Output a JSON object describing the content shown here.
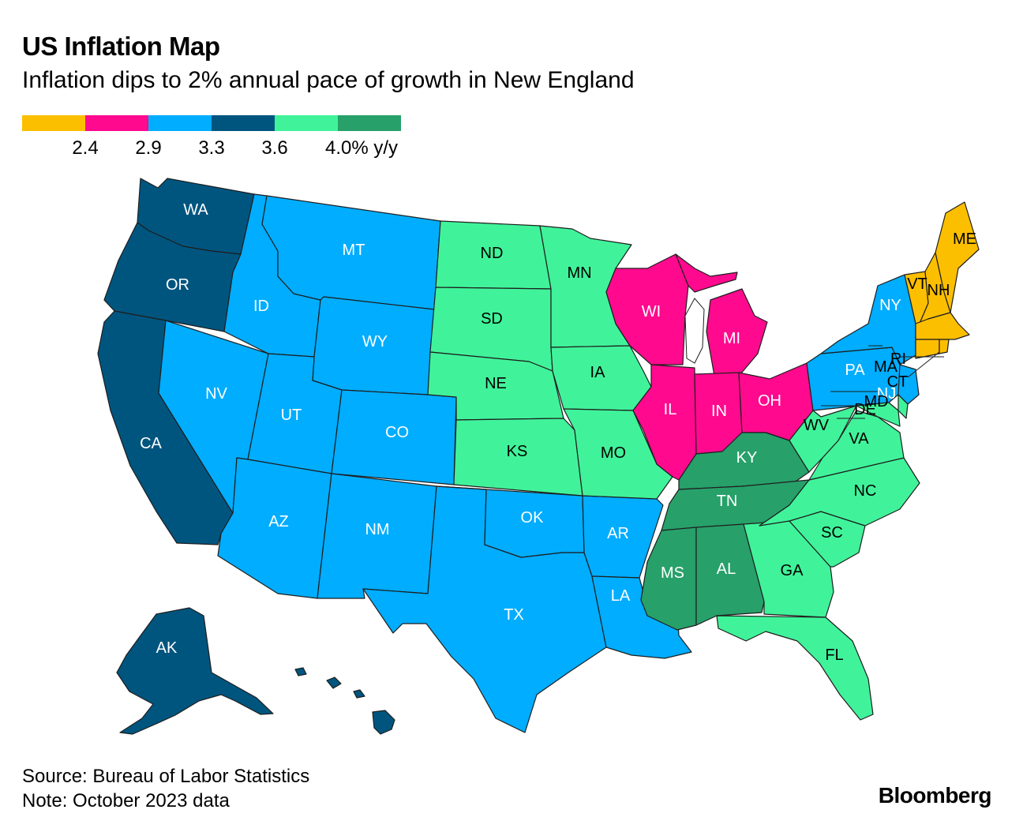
{
  "title": "US Inflation Map",
  "subtitle": "Inflation dips to 2% annual pace of growth in New England",
  "legend": {
    "bins": [
      {
        "color": "#fcbf00"
      },
      {
        "color": "#ff0a8e"
      },
      {
        "color": "#00adff"
      },
      {
        "color": "#00557f"
      },
      {
        "color": "#40f39a"
      },
      {
        "color": "#27a06a"
      }
    ],
    "ticks": [
      "2.4",
      "2.9",
      "3.3",
      "3.6",
      "4.0% y/y"
    ]
  },
  "chart_data": {
    "type": "choropleth",
    "title": "US Inflation Map",
    "subtitle": "Inflation dips to 2% annual pace of growth in New England",
    "unit": "% y/y",
    "bin_edges": [
      2.4,
      2.9,
      3.3,
      3.6,
      4.0
    ],
    "bin_colors": [
      "#fcbf00",
      "#ff0a8e",
      "#00adff",
      "#00557f",
      "#40f39a",
      "#27a06a"
    ],
    "states": [
      {
        "code": "WA",
        "bin": 3
      },
      {
        "code": "OR",
        "bin": 3
      },
      {
        "code": "CA",
        "bin": 3
      },
      {
        "code": "AK",
        "bin": 3
      },
      {
        "code": "HI",
        "bin": 3
      },
      {
        "code": "ID",
        "bin": 2
      },
      {
        "code": "MT",
        "bin": 2
      },
      {
        "code": "WY",
        "bin": 2
      },
      {
        "code": "NV",
        "bin": 2
      },
      {
        "code": "UT",
        "bin": 2
      },
      {
        "code": "CO",
        "bin": 2
      },
      {
        "code": "AZ",
        "bin": 2
      },
      {
        "code": "NM",
        "bin": 2
      },
      {
        "code": "TX",
        "bin": 2
      },
      {
        "code": "OK",
        "bin": 2
      },
      {
        "code": "AR",
        "bin": 2
      },
      {
        "code": "LA",
        "bin": 2
      },
      {
        "code": "NY",
        "bin": 2
      },
      {
        "code": "PA",
        "bin": 2
      },
      {
        "code": "NJ",
        "bin": 2
      },
      {
        "code": "ND",
        "bin": 4
      },
      {
        "code": "SD",
        "bin": 4
      },
      {
        "code": "NE",
        "bin": 4
      },
      {
        "code": "KS",
        "bin": 4
      },
      {
        "code": "MN",
        "bin": 4
      },
      {
        "code": "IA",
        "bin": 4
      },
      {
        "code": "MO",
        "bin": 4
      },
      {
        "code": "WV",
        "bin": 4
      },
      {
        "code": "VA",
        "bin": 4
      },
      {
        "code": "NC",
        "bin": 4
      },
      {
        "code": "SC",
        "bin": 4
      },
      {
        "code": "GA",
        "bin": 4
      },
      {
        "code": "FL",
        "bin": 4
      },
      {
        "code": "MD",
        "bin": 4
      },
      {
        "code": "DE",
        "bin": 4
      },
      {
        "code": "WI",
        "bin": 1
      },
      {
        "code": "MI",
        "bin": 1
      },
      {
        "code": "IL",
        "bin": 1
      },
      {
        "code": "IN",
        "bin": 1
      },
      {
        "code": "OH",
        "bin": 1
      },
      {
        "code": "KY",
        "bin": 5
      },
      {
        "code": "TN",
        "bin": 5
      },
      {
        "code": "MS",
        "bin": 5
      },
      {
        "code": "AL",
        "bin": 5
      },
      {
        "code": "ME",
        "bin": 0
      },
      {
        "code": "VT",
        "bin": 0
      },
      {
        "code": "NH",
        "bin": 0
      },
      {
        "code": "MA",
        "bin": 0
      },
      {
        "code": "RI",
        "bin": 0
      },
      {
        "code": "CT",
        "bin": 0
      }
    ]
  },
  "footer": {
    "source": "Source: Bureau of Labor Statistics",
    "note": "Note: October 2023 data"
  },
  "brand": "Bloomberg"
}
